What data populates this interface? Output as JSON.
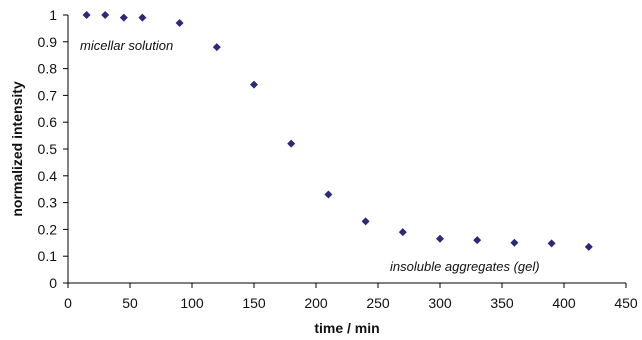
{
  "chart_data": {
    "type": "scatter",
    "title": "",
    "xlabel": "time / min",
    "ylabel": "normalized  intensity",
    "xlim": [
      0,
      450
    ],
    "ylim": [
      0,
      1
    ],
    "x_ticks": [
      "0",
      "50",
      "100",
      "150",
      "200",
      "250",
      "300",
      "350",
      "400",
      "450"
    ],
    "y_ticks": [
      "0",
      "0.1",
      "0.2",
      "0.3",
      "0.4",
      "0.5",
      "0.6",
      "0.7",
      "0.8",
      "0.9",
      "1"
    ],
    "grid": false,
    "legend": "none",
    "marker": "diamond",
    "marker_color": "#2B2A7A",
    "series": [
      {
        "x": [
          15,
          30,
          45,
          60,
          90,
          120,
          150,
          180,
          210,
          240,
          270,
          300,
          330,
          360,
          390,
          420
        ],
        "y": [
          1.0,
          1.0,
          0.99,
          0.99,
          0.97,
          0.88,
          0.74,
          0.52,
          0.33,
          0.23,
          0.19,
          0.165,
          0.16,
          0.15,
          0.148,
          0.135
        ]
      }
    ],
    "annotations": [
      {
        "text": "micellar solution"
      },
      {
        "text": "insoluble aggregates (gel)"
      }
    ]
  }
}
